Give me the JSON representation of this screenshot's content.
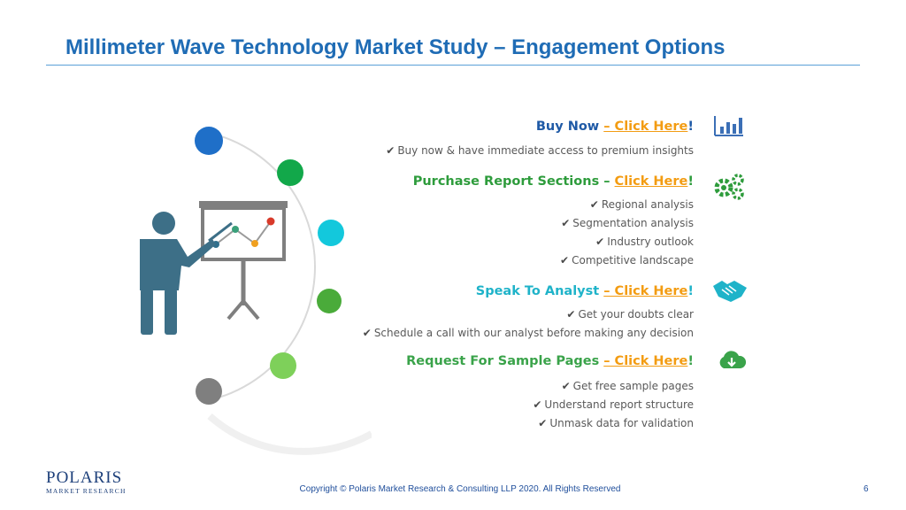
{
  "title": "Millimeter Wave Technology Market Study – Engagement Options",
  "sections": [
    {
      "heading": "Buy Now ",
      "link_text": "– Click Here",
      "exclaim": "!",
      "color": "#1f5aa6",
      "icon": "bar-chart-icon",
      "bullets": [
        "Buy now & have immediate access to premium insights"
      ]
    },
    {
      "heading": "Purchase Report Sections – ",
      "link_text": "Click Here",
      "exclaim": "!",
      "color": "#2e9c3c",
      "icon": "gears-icon",
      "bullets": [
        "Regional analysis",
        "Segmentation analysis",
        "Industry outlook",
        "Competitive landscape"
      ]
    },
    {
      "heading": "Speak To Analyst ",
      "link_text": "– Click Here",
      "exclaim": "!",
      "color": "#1fb3c9",
      "icon": "handshake-icon",
      "bullets": [
        "Get your doubts clear",
        "Schedule a call with our analyst before making any decision"
      ]
    },
    {
      "heading": "Request For Sample Pages ",
      "link_text": "– Click Here",
      "exclaim": "!",
      "color": "#3aa34a",
      "icon": "cloud-download-icon",
      "bullets": [
        "Get free sample pages",
        "Understand report structure",
        "Unmask data for validation"
      ]
    }
  ],
  "link_color": "#f39c12",
  "footer": {
    "copyright": "Copyright © Polaris Market Research & Consulting LLP 2020. All Rights Reserved",
    "page_number": "6"
  },
  "logo": {
    "name": "POLARIS",
    "subtitle": "MARKET RESEARCH"
  }
}
